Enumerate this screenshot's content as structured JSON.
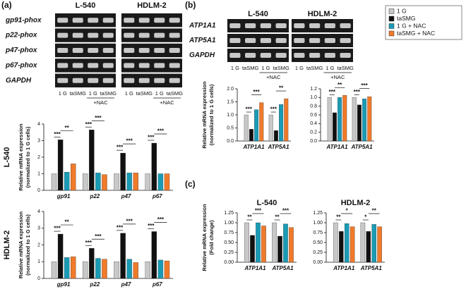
{
  "panels": [
    {
      "label": "(a)",
      "cell_lines": [
        "L-540",
        "HDLM-2"
      ],
      "genes": [
        "gp91-phox",
        "p22-phox",
        "p47-phox",
        "p67-phox",
        "GAPDH"
      ],
      "lanes": [
        "1 G",
        "taSMG",
        "1 G",
        "taSMG"
      ],
      "treatment": "+NAC"
    },
    {
      "label": "(b)",
      "cell_lines": [
        "L-540",
        "HDLM-2"
      ],
      "genes": [
        "ATP1A1",
        "ATP5A1",
        "GAPDH"
      ],
      "lanes": [
        "1 G",
        "taSMG",
        "1 G",
        "taSMG"
      ],
      "treatment": "+NAC"
    },
    {
      "label": "(c)"
    }
  ],
  "chart_data": [
    {
      "type": "bar",
      "title": "L-540",
      "ylabel": [
        "Relative mRNA expression",
        "(normalized to 1 G cells)"
      ],
      "categories": [
        "gp91",
        "p22",
        "p47",
        "p67"
      ],
      "series": [
        {
          "name": "1 G",
          "color": "#c8c8c8",
          "values": [
            1,
            1,
            1,
            1
          ]
        },
        {
          "name": "taSMG",
          "color": "#111111",
          "values": [
            3.05,
            3.65,
            2.25,
            2.85
          ]
        },
        {
          "name": "1 G + NAC",
          "color": "#1a9bb5",
          "values": [
            1.1,
            1.05,
            1.05,
            1.0
          ]
        },
        {
          "name": "taSMG + NAC",
          "color": "#f07a2a",
          "values": [
            1.6,
            0.95,
            1.05,
            1.0
          ]
        }
      ],
      "ylim": [
        0,
        4
      ],
      "yticks": [
        0,
        1,
        2,
        3,
        4
      ],
      "annotations": [
        [
          "***",
          "**"
        ],
        [
          "***",
          "***"
        ],
        [
          "***",
          "***"
        ],
        [
          "***",
          "***"
        ]
      ]
    },
    {
      "type": "bar",
      "title": "HDLM-2",
      "ylabel": [
        "Relative mRNA expression",
        "(normalized to 1 G cells)"
      ],
      "categories": [
        "gp91",
        "p22",
        "p47",
        "p67"
      ],
      "series": [
        {
          "name": "1 G",
          "color": "#c8c8c8",
          "values": [
            1,
            1,
            1,
            1
          ]
        },
        {
          "name": "taSMG",
          "color": "#111111",
          "values": [
            2.65,
            1.8,
            2.7,
            2.8
          ]
        },
        {
          "name": "1 G + NAC",
          "color": "#1a9bb5",
          "values": [
            1.25,
            1.2,
            1.15,
            1.1
          ]
        },
        {
          "name": "taSMG + NAC",
          "color": "#f07a2a",
          "values": [
            1.3,
            1.15,
            0.95,
            1.05
          ]
        }
      ],
      "ylim": [
        0,
        4
      ],
      "yticks": [
        0,
        1,
        2,
        3,
        4
      ],
      "annotations": [
        [
          "***",
          "**"
        ],
        [
          "***",
          "***"
        ],
        [
          "***",
          "***"
        ],
        [
          "***",
          "***"
        ]
      ]
    },
    {
      "type": "bar",
      "ylabel": [
        "Relative mRNA expression",
        "(normalized to 1 G cells)"
      ],
      "categories": [
        "ATP1A1",
        "ATP5A1"
      ],
      "series": [
        {
          "name": "1 G",
          "color": "#c8c8c8",
          "values": [
            1.0,
            1.0
          ]
        },
        {
          "name": "taSMG",
          "color": "#111111",
          "values": [
            0.45,
            0.4
          ]
        },
        {
          "name": "1 G + NAC",
          "color": "#1a9bb5",
          "values": [
            1.2,
            1.4
          ]
        },
        {
          "name": "taSMG + NAC",
          "color": "#f07a2a",
          "values": [
            1.47,
            1.62
          ]
        }
      ],
      "ylim": [
        0,
        2
      ],
      "yticks": [
        {
          "value": 0,
          "label": "0.0"
        },
        0.5,
        {
          "value": 1,
          "label": "1.0"
        },
        1.5,
        {
          "value": 2,
          "label": "2.0"
        }
      ],
      "annotations": [
        [
          "***",
          "***"
        ],
        [
          "***",
          "**"
        ]
      ]
    },
    {
      "type": "bar",
      "categories": [
        "ATP1A1",
        "ATP5A1"
      ],
      "series": [
        {
          "name": "1 G",
          "color": "#c8c8c8",
          "values": [
            1.0,
            1.0
          ]
        },
        {
          "name": "taSMG",
          "color": "#111111",
          "values": [
            0.65,
            0.83
          ]
        },
        {
          "name": "1 G + NAC",
          "color": "#1a9bb5",
          "values": [
            1.0,
            0.97
          ]
        },
        {
          "name": "taSMG + NAC",
          "color": "#f07a2a",
          "values": [
            1.05,
            1.02
          ]
        }
      ],
      "ylim": [
        0,
        1.2
      ],
      "yticks": [
        {
          "value": 0,
          "label": "0.0"
        },
        0.2,
        0.4,
        0.6,
        0.8,
        {
          "value": 1,
          "label": "1.0"
        },
        1.2
      ],
      "annotations": [
        [
          "***",
          "**"
        ],
        [
          "***",
          "***"
        ]
      ]
    },
    {
      "type": "bar",
      "title": "L-540",
      "ylabel": [
        "Relative mRNA expression",
        "(Fold change)"
      ],
      "categories": [
        "ATP1A1",
        "ATP5A1"
      ],
      "series": [
        {
          "name": "1 G",
          "color": "#c8c8c8",
          "values": [
            1.0,
            1.0
          ]
        },
        {
          "name": "taSMG",
          "color": "#111111",
          "values": [
            0.68,
            0.66
          ]
        },
        {
          "name": "1 G + NAC",
          "color": "#1a9bb5",
          "values": [
            1.0,
            0.97
          ]
        },
        {
          "name": "taSMG + NAC",
          "color": "#f07a2a",
          "values": [
            0.92,
            0.88
          ]
        }
      ],
      "ylim": [
        0,
        1.25
      ],
      "yticks": [
        {
          "value": 0,
          "label": "0.00"
        },
        0.25,
        {
          "value": 0.5,
          "label": "0.50"
        },
        0.75,
        {
          "value": 1,
          "label": "1.00"
        },
        1.25
      ],
      "annotations": [
        [
          "**",
          "***"
        ],
        [
          "**",
          "***"
        ]
      ]
    },
    {
      "type": "bar",
      "title": "HDLM-2",
      "categories": [
        "ATP1A1",
        "ATP5A1"
      ],
      "series": [
        {
          "name": "1 G",
          "color": "#c8c8c8",
          "values": [
            1.0,
            1.0
          ]
        },
        {
          "name": "taSMG",
          "color": "#111111",
          "values": [
            0.78,
            0.78
          ]
        },
        {
          "name": "1 G + NAC",
          "color": "#1a9bb5",
          "values": [
            0.98,
            0.96
          ]
        },
        {
          "name": "taSMG + NAC",
          "color": "#f07a2a",
          "values": [
            0.9,
            0.9
          ]
        }
      ],
      "ylim": [
        0,
        1.25
      ],
      "yticks": [
        {
          "value": 0,
          "label": "0.00"
        },
        0.25,
        {
          "value": 0.5,
          "label": "0.50"
        },
        0.75,
        {
          "value": 1,
          "label": "1.00"
        },
        1.25
      ],
      "annotations": [
        [
          "**",
          "*"
        ],
        [
          "*",
          "**"
        ]
      ]
    }
  ]
}
